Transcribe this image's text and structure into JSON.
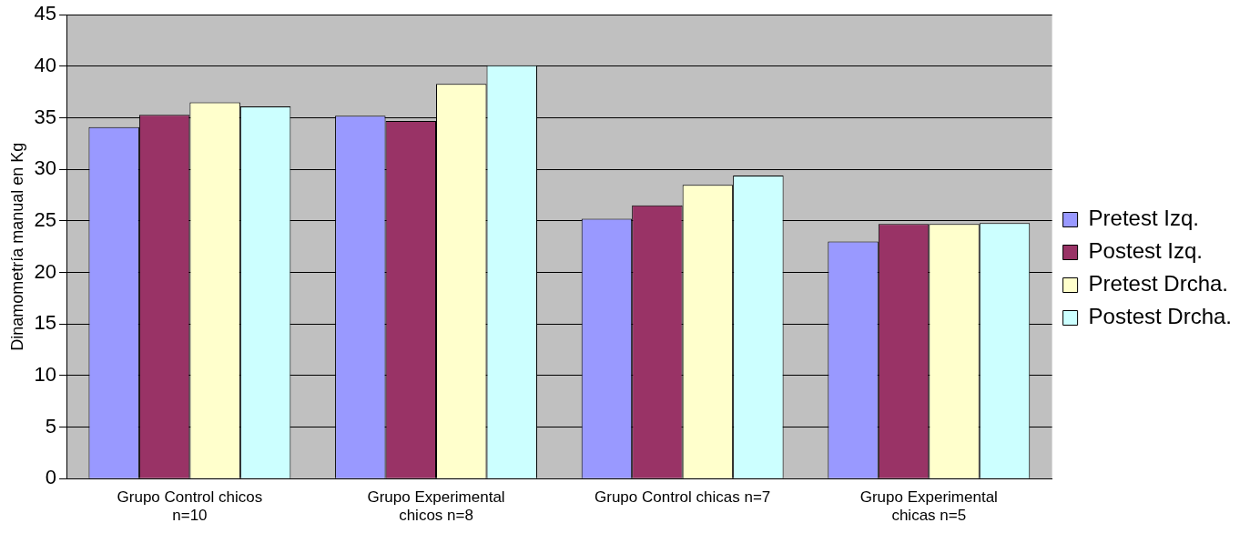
{
  "chart_data": {
    "type": "bar",
    "ylabel": "Dinamometría manual en Kg",
    "categories": [
      "Grupo Control chicos n=10",
      "Grupo Experimental chicos n=8",
      "Grupo Control chicas n=7",
      "Grupo Experimental chicas n=5"
    ],
    "series": [
      {
        "name": "Pretest Izq.",
        "color": "#9999ff",
        "values": [
          34.1,
          35.2,
          25.2,
          23.0
        ]
      },
      {
        "name": "Postest Izq.",
        "color": "#993366",
        "values": [
          35.3,
          34.7,
          26.5,
          24.7
        ]
      },
      {
        "name": "Pretest Drcha.",
        "color": "#ffffcc",
        "values": [
          36.5,
          38.3,
          28.5,
          24.7
        ]
      },
      {
        "name": "Postest Drcha.",
        "color": "#ccffff",
        "values": [
          36.1,
          40.1,
          29.4,
          24.8
        ]
      }
    ],
    "ylim": [
      0,
      45
    ],
    "yticks": [
      0,
      5,
      10,
      15,
      20,
      25,
      30,
      35,
      40,
      45
    ],
    "grid": "y",
    "legend": "right"
  }
}
